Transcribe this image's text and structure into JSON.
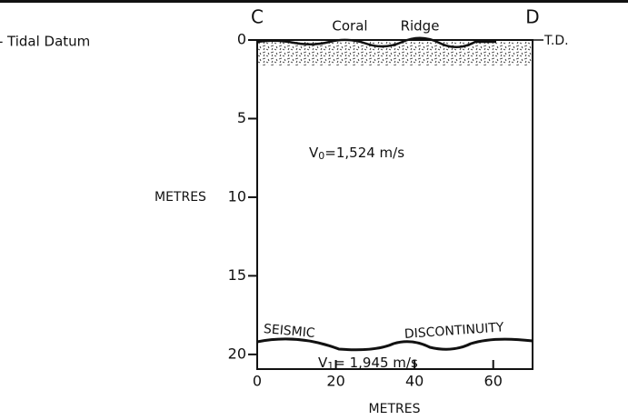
{
  "header": {
    "legend": "Tidal Datum"
  },
  "section": {
    "left_end": "C",
    "right_end": "D",
    "surface_labels": [
      "Coral",
      "Ridge"
    ],
    "datum_label": "T.D.",
    "upper_velocity": {
      "symbol": "V",
      "subscript": "0",
      "text": "=1,524 m/s"
    },
    "lower_velocity": {
      "symbol": "V",
      "subscript": "1",
      "text": "= 1,945 m/s"
    },
    "boundary_labels": [
      "SEISMIC",
      "DISCONTINUITY"
    ]
  },
  "axes": {
    "y_label": "METRES",
    "x_label": "METRES",
    "yticks": [
      0,
      5,
      10,
      15,
      20
    ],
    "xticks": [
      0,
      20,
      40,
      60
    ],
    "ylim": [
      0,
      20.5
    ],
    "xlim": [
      0,
      70
    ]
  }
}
